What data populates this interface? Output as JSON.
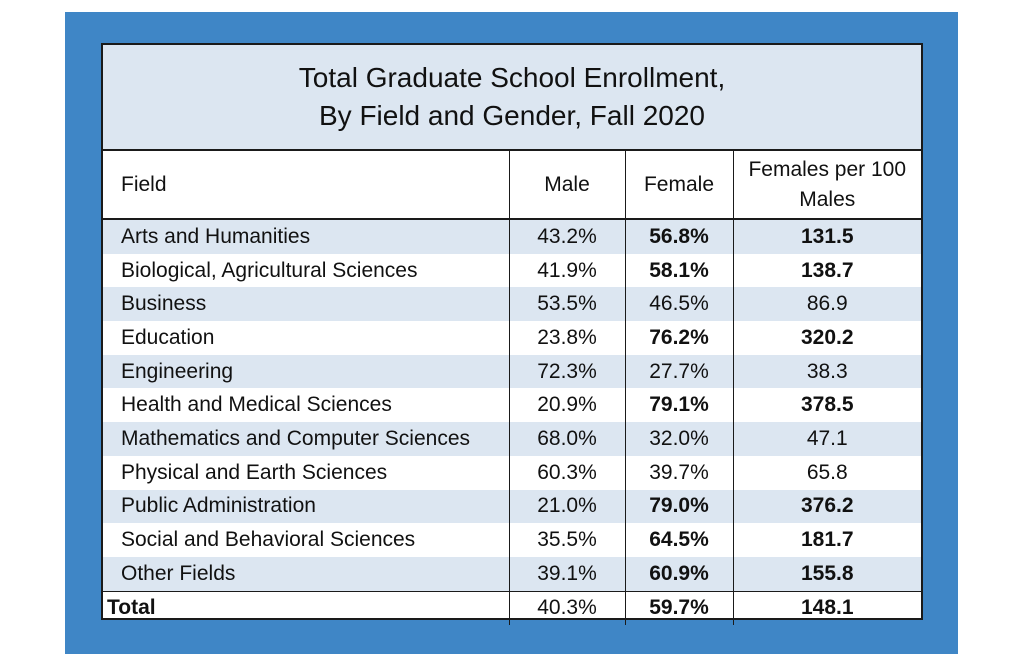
{
  "chart_data": {
    "type": "table",
    "title": [
      "Total Graduate School Enrollment,",
      "By Field and Gender, Fall 2020"
    ],
    "columns": [
      "Field",
      "Male",
      "Female",
      "Females per 100 Males"
    ],
    "header_ratio_lines": [
      "Females per 100",
      "Males"
    ],
    "rows": [
      {
        "field": "Arts and Humanities",
        "male": "43.2%",
        "female": "56.8%",
        "ratio": "131.5",
        "bold": true
      },
      {
        "field": "Biological, Agricultural Sciences",
        "male": "41.9%",
        "female": "58.1%",
        "ratio": "138.7",
        "bold": true
      },
      {
        "field": "Business",
        "male": "53.5%",
        "female": "46.5%",
        "ratio": "86.9",
        "bold": false
      },
      {
        "field": "Education",
        "male": "23.8%",
        "female": "76.2%",
        "ratio": "320.2",
        "bold": true
      },
      {
        "field": "Engineering",
        "male": "72.3%",
        "female": "27.7%",
        "ratio": "38.3",
        "bold": false
      },
      {
        "field": "Health and Medical Sciences",
        "male": "20.9%",
        "female": "79.1%",
        "ratio": "378.5",
        "bold": true
      },
      {
        "field": "Mathematics and Computer Sciences",
        "male": "68.0%",
        "female": "32.0%",
        "ratio": "47.1",
        "bold": false
      },
      {
        "field": "Physical and Earth Sciences",
        "male": "60.3%",
        "female": "39.7%",
        "ratio": "65.8",
        "bold": false
      },
      {
        "field": "Public Administration",
        "male": "21.0%",
        "female": "79.0%",
        "ratio": "376.2",
        "bold": true
      },
      {
        "field": "Social and Behavioral Sciences",
        "male": "35.5%",
        "female": "64.5%",
        "ratio": "181.7",
        "bold": true
      },
      {
        "field": "Other Fields",
        "male": "39.1%",
        "female": "60.9%",
        "ratio": "155.8",
        "bold": true
      }
    ],
    "total": {
      "field": "Total",
      "male": "40.3%",
      "female": "59.7%",
      "ratio": "148.1",
      "bold": true
    }
  },
  "colors": {
    "frame": "#3f86c6",
    "shade": "#dce6f1"
  }
}
